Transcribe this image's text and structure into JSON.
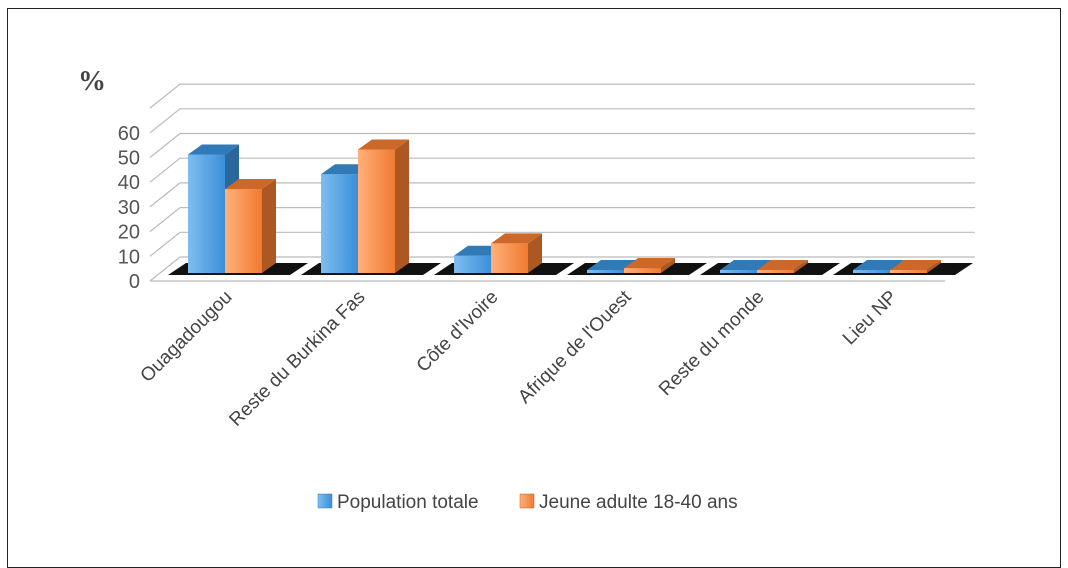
{
  "chart_data": {
    "type": "bar",
    "title": "",
    "ylabel": "%",
    "xlabel": "",
    "ylim": [
      0,
      60
    ],
    "yticks": [
      "0",
      "10",
      "20",
      "30",
      "40",
      "50",
      "60"
    ],
    "categories": [
      "Ouagadougou",
      "Reste du Burkina Fas",
      "Côte d'Ivoire",
      "Afrique de l'Ouest",
      "Reste du monde",
      "Lieu NP"
    ],
    "series": [
      {
        "name": "Population totale",
        "values": [
          48,
          40,
          7,
          1,
          0.3,
          0.3
        ],
        "color": "#3A8FD8"
      },
      {
        "name": "Jeune adulte 18-40 ans",
        "values": [
          34,
          50,
          12,
          2,
          0.3,
          0.3
        ],
        "color": "#F07A30"
      }
    ],
    "grid": true,
    "legend_position": "bottom",
    "style": "3d-clustered"
  }
}
